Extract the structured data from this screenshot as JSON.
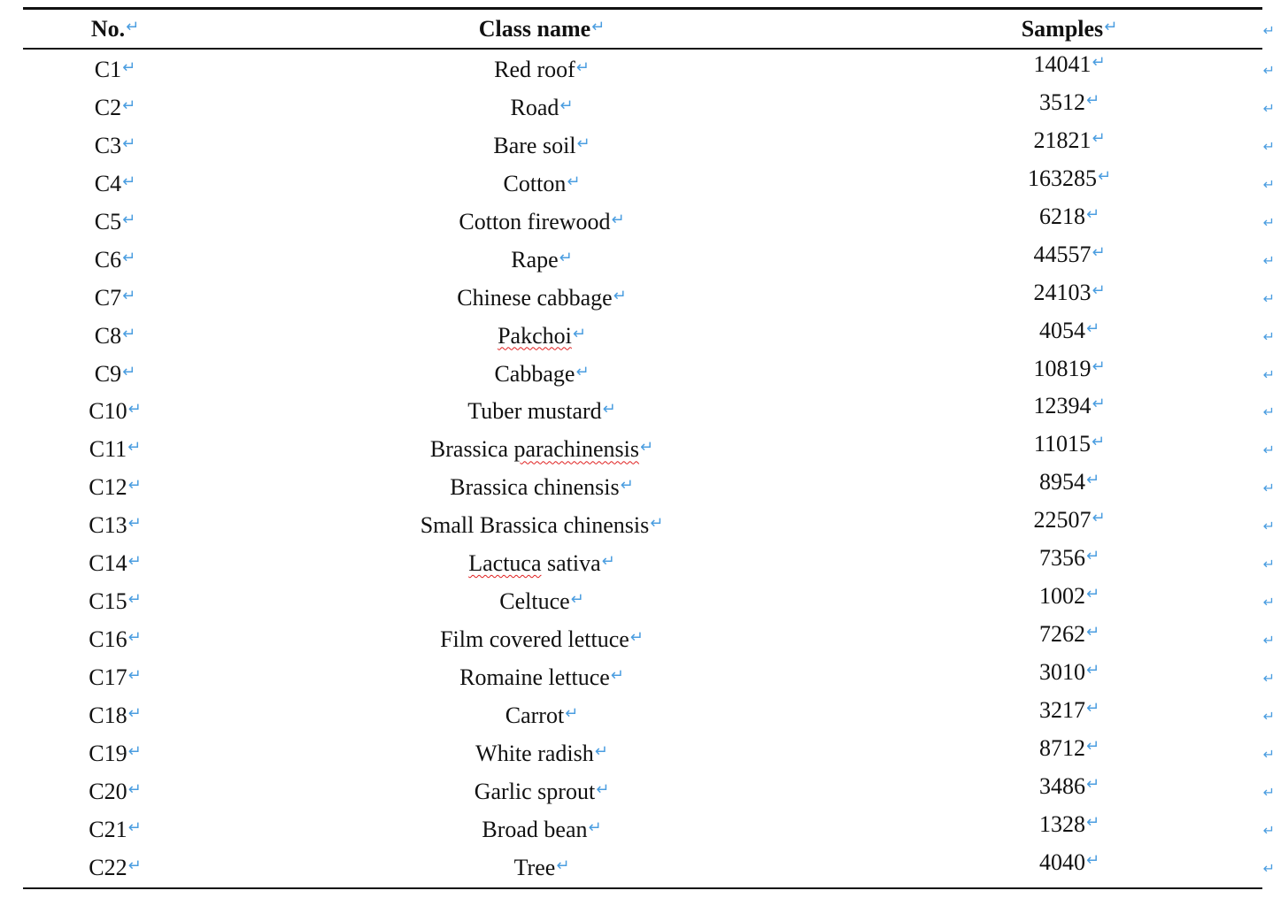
{
  "table": {
    "headers": {
      "no": "No.",
      "class_name": "Class name",
      "samples": "Samples"
    },
    "paragraph_mark": "↵",
    "row_end_mark": "↵",
    "rows": [
      {
        "no": "C1",
        "class_name": "Red roof",
        "samples": "14041"
      },
      {
        "no": "C2",
        "class_name": "Road",
        "samples": "3512"
      },
      {
        "no": "C3",
        "class_name": "Bare soil",
        "samples": "21821"
      },
      {
        "no": "C4",
        "class_name": "Cotton",
        "samples": "163285"
      },
      {
        "no": "C5",
        "class_name": "Cotton firewood",
        "samples": "6218"
      },
      {
        "no": "C6",
        "class_name": "Rape",
        "samples": "44557"
      },
      {
        "no": "C7",
        "class_name": "Chinese cabbage",
        "samples": "24103"
      },
      {
        "no": "C8",
        "class_name": "Pakchoi",
        "samples": "4054",
        "misspelled": "Pakchoi"
      },
      {
        "no": "C9",
        "class_name": "Cabbage",
        "samples": "10819"
      },
      {
        "no": "C10",
        "class_name": "Tuber mustard",
        "samples": "12394"
      },
      {
        "no": "C11",
        "class_name": "Brassica parachinensis",
        "samples": "11015",
        "misspelled": "parachinensis"
      },
      {
        "no": "C12",
        "class_name": "Brassica chinensis",
        "samples": "8954"
      },
      {
        "no": "C13",
        "class_name": "Small Brassica chinensis",
        "samples": "22507"
      },
      {
        "no": "C14",
        "class_name": "Lactuca sativa",
        "samples": "7356",
        "misspelled": "Lactuca"
      },
      {
        "no": "C15",
        "class_name": "Celtuce",
        "samples": "1002"
      },
      {
        "no": "C16",
        "class_name": "Film covered lettuce",
        "samples": "7262"
      },
      {
        "no": "C17",
        "class_name": "Romaine lettuce",
        "samples": "3010"
      },
      {
        "no": "C18",
        "class_name": "Carrot",
        "samples": "3217"
      },
      {
        "no": "C19",
        "class_name": "White radish",
        "samples": "8712"
      },
      {
        "no": "C20",
        "class_name": "Garlic sprout",
        "samples": "3486"
      },
      {
        "no": "C21",
        "class_name": "Broad bean",
        "samples": "1328"
      },
      {
        "no": "C22",
        "class_name": "Tree",
        "samples": "4040"
      }
    ],
    "colors": {
      "text": "#111111",
      "paragraph_mark": "#4a9de0",
      "spellcheck": "#e02020"
    }
  }
}
